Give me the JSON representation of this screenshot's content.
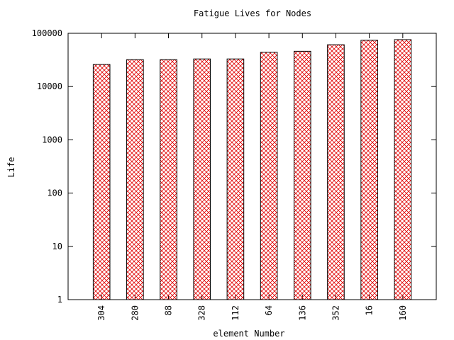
{
  "chart_data": {
    "type": "bar",
    "title": "Fatigue Lives for Nodes",
    "x_label": "element Number",
    "y_label": "Life",
    "categories": [
      "304",
      "280",
      "88",
      "328",
      "112",
      "64",
      "136",
      "352",
      "16",
      "160"
    ],
    "values": [
      26000,
      32000,
      32000,
      33000,
      33000,
      44000,
      46000,
      61000,
      74000,
      76000
    ],
    "color": "#e00000",
    "ylog": true,
    "ylim": [
      1,
      100000
    ],
    "yticks": [
      1,
      10,
      100,
      1000,
      10000,
      100000
    ]
  }
}
